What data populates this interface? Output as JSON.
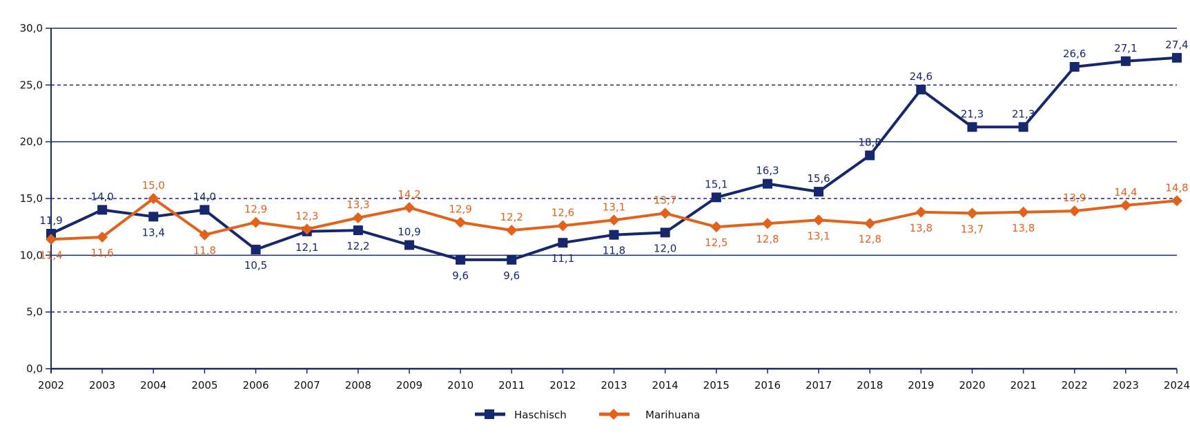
{
  "chart_data": {
    "type": "line",
    "title": "",
    "xlabel": "",
    "ylabel": "",
    "ylim": [
      0,
      30
    ],
    "yticks": [
      "0,0",
      "5,0",
      "10,0",
      "15,0",
      "20,0",
      "25,0",
      "30,0"
    ],
    "ytick_values": [
      0,
      5,
      10,
      15,
      20,
      25,
      30
    ],
    "grid": "horizontal (solid at 10/20/30, dashed at 5/15/25)",
    "legend_position": "bottom-center",
    "categories": [
      "2002",
      "2003",
      "2004",
      "2005",
      "2006",
      "2007",
      "2008",
      "2009",
      "2010",
      "2011",
      "2012",
      "2013",
      "2014",
      "2015",
      "2016",
      "2017",
      "2018",
      "2019",
      "2020",
      "2021",
      "2022",
      "2023",
      "2024"
    ],
    "series": [
      {
        "name": "Haschisch",
        "color": "#17276e",
        "marker": "square",
        "values": [
          11.9,
          14.0,
          13.4,
          14.0,
          10.5,
          12.1,
          12.2,
          10.9,
          9.6,
          9.6,
          11.1,
          11.8,
          12.0,
          15.1,
          16.3,
          15.6,
          18.8,
          24.6,
          21.3,
          21.3,
          26.6,
          27.1,
          27.4
        ],
        "labels": [
          "11,9",
          "14,0",
          "13,4",
          "14,0",
          "10,5",
          "12,1",
          "12,2",
          "10,9",
          "9,6",
          "9,6",
          "11,1",
          "11,8",
          "12,0",
          "15,1",
          "16,3",
          "15,6",
          "18,8",
          "24,6",
          "21,3",
          "21,3",
          "26,6",
          "27,1",
          "27,4"
        ],
        "label_side": [
          "above",
          "above",
          "below",
          "above",
          "below",
          "below",
          "below",
          "above",
          "below",
          "below",
          "below",
          "below",
          "below",
          "above",
          "above",
          "above",
          "above",
          "above",
          "above",
          "above",
          "above",
          "above",
          "above"
        ]
      },
      {
        "name": "Marihuana",
        "color": "#e2621b",
        "marker": "diamond",
        "values": [
          11.4,
          11.6,
          15.0,
          11.8,
          12.9,
          12.3,
          13.3,
          14.2,
          12.9,
          12.2,
          12.6,
          13.1,
          13.7,
          12.5,
          12.8,
          13.1,
          12.8,
          13.8,
          13.7,
          13.8,
          13.9,
          14.4,
          14.8
        ],
        "labels": [
          "11,4",
          "11,6",
          "15,0",
          "11,8",
          "12,9",
          "12,3",
          "13,3",
          "14,2",
          "12,9",
          "12,2",
          "12,6",
          "13,1",
          "13,7",
          "12,5",
          "12,8",
          "13,1",
          "12,8",
          "13,8",
          "13,7",
          "13,8",
          "13,9",
          "14,4",
          "14,8"
        ],
        "label_side": [
          "below",
          "below",
          "above",
          "below",
          "above",
          "above",
          "above",
          "above",
          "above",
          "above",
          "above",
          "above",
          "above",
          "below",
          "below",
          "below",
          "below",
          "below",
          "below",
          "below",
          "above",
          "above",
          "above"
        ]
      }
    ]
  }
}
